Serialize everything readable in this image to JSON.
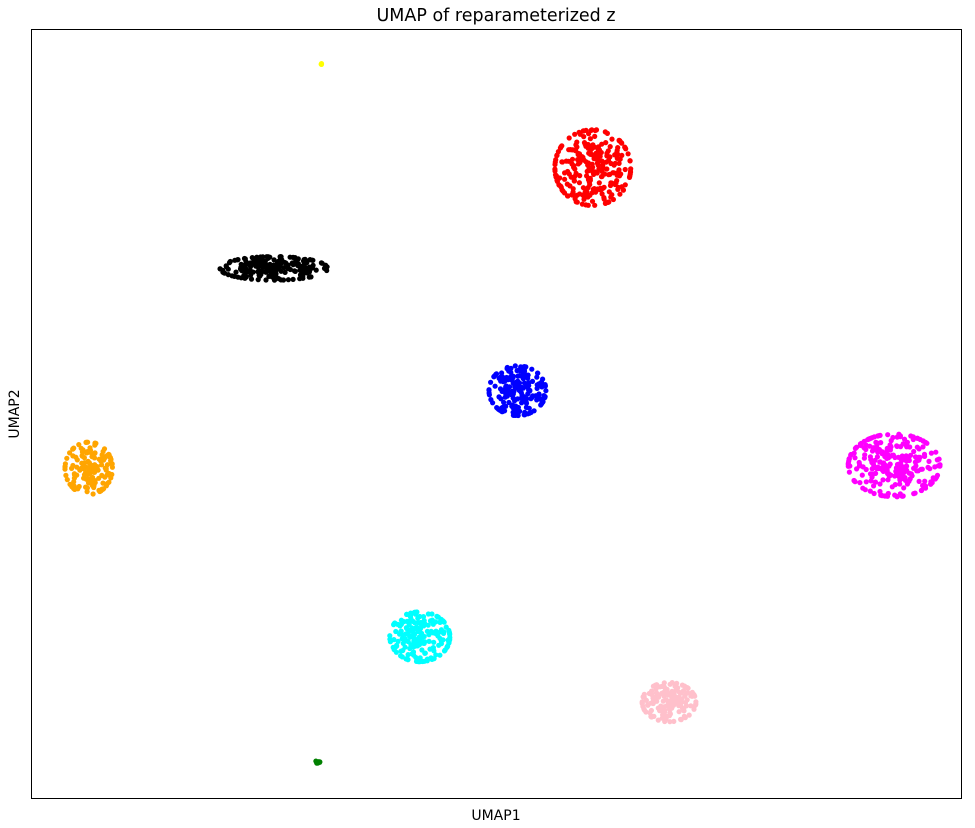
{
  "chart_data": {
    "type": "scatter",
    "title": "UMAP of reparameterized z",
    "xlabel": "UMAP1",
    "ylabel": "UMAP2",
    "xlim": [
      0,
      100
    ],
    "ylim": [
      0,
      100
    ],
    "xticks": [],
    "yticks": [],
    "grid": false,
    "legend": "none",
    "series": [
      {
        "color": "#ff0000",
        "center": [
          60.3,
          82.1
        ],
        "spread": [
          2.4,
          2.9
        ],
        "count": 260
      },
      {
        "color": "#000000",
        "center": [
          26.0,
          69.0
        ],
        "spread": [
          3.4,
          0.9
        ],
        "count": 200
      },
      {
        "color": "#0000ff",
        "center": [
          52.2,
          53.1
        ],
        "spread": [
          1.8,
          1.9
        ],
        "count": 200
      },
      {
        "color": "#ffa500",
        "center": [
          6.1,
          43.0
        ],
        "spread": [
          1.5,
          2.0
        ],
        "count": 150
      },
      {
        "color": "#ff00ff",
        "center": [
          92.7,
          43.4
        ],
        "spread": [
          2.9,
          2.4
        ],
        "count": 260
      },
      {
        "color": "#00ffff",
        "center": [
          41.7,
          21.1
        ],
        "spread": [
          1.9,
          1.9
        ],
        "count": 200
      },
      {
        "color": "#ffc0cb",
        "center": [
          68.5,
          12.6
        ],
        "spread": [
          1.7,
          1.5
        ],
        "count": 150
      },
      {
        "color": "#ffff00",
        "center": [
          31.1,
          95.6
        ],
        "spread": [
          0.05,
          0.05
        ],
        "count": 3
      },
      {
        "color": "#008000",
        "center": [
          30.7,
          4.8
        ],
        "spread": [
          0.15,
          0.1
        ],
        "count": 8
      }
    ]
  }
}
